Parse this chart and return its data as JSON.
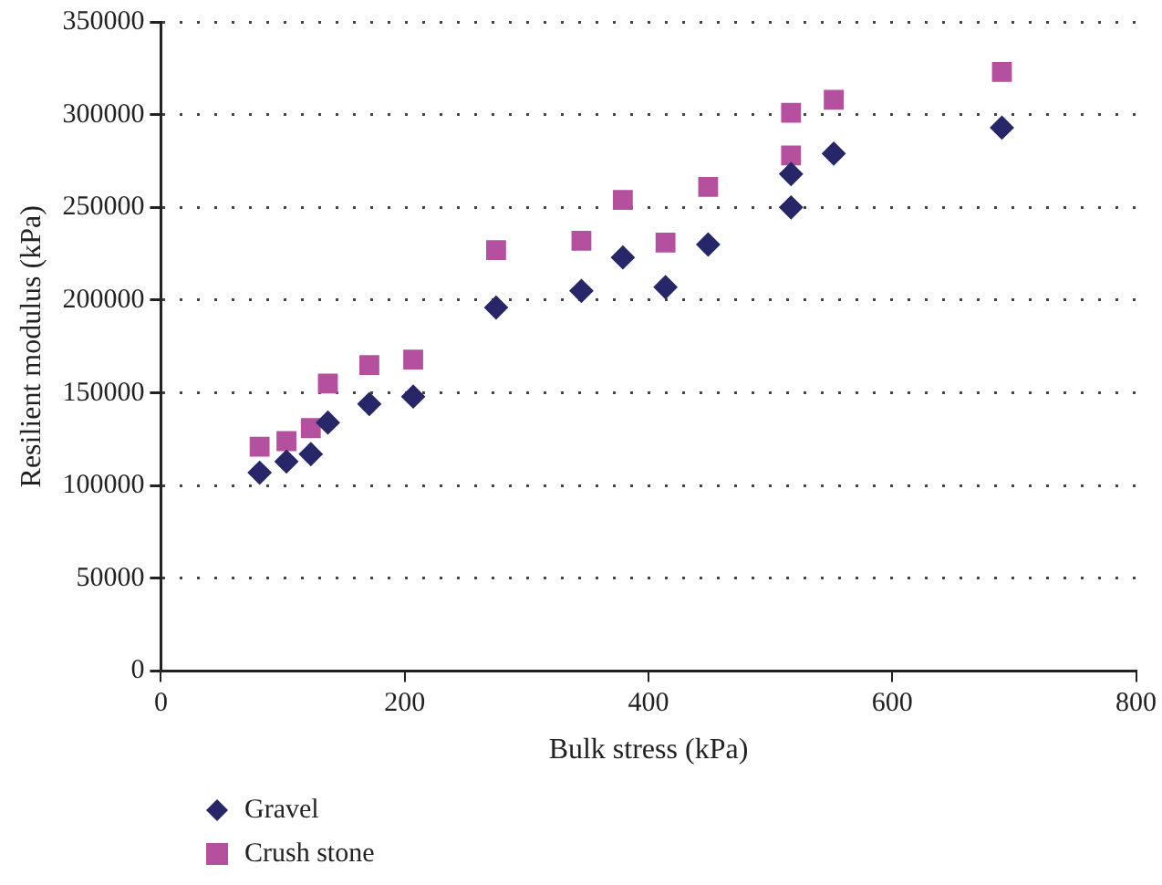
{
  "chart_data": {
    "type": "scatter",
    "xlabel": "Bulk stress (kPa)",
    "ylabel": "Resilient modulus (kPa)",
    "xlim": [
      0,
      800
    ],
    "xticks": [
      0,
      200,
      400,
      600,
      800
    ],
    "ylim": [
      0,
      350000
    ],
    "yticks": [
      0,
      50000,
      100000,
      150000,
      200000,
      250000,
      300000,
      350000
    ],
    "grid": "y",
    "legend": "bottom left",
    "series": [
      {
        "name": "Gravel",
        "color": "#262669",
        "marker": "diamond",
        "x": [
          81,
          103,
          123,
          137,
          171,
          207,
          275,
          345,
          379,
          414,
          449,
          517,
          517,
          552,
          690
        ],
        "values": [
          107000,
          113000,
          117000,
          134000,
          144000,
          148000,
          196000,
          205000,
          223000,
          207000,
          230000,
          250000,
          268000,
          279000,
          293000
        ]
      },
      {
        "name": "Crush stone",
        "color": "#b5509f",
        "marker": "square",
        "x": [
          81,
          103,
          123,
          137,
          171,
          207,
          275,
          345,
          379,
          414,
          449,
          517,
          517,
          552,
          690
        ],
        "values": [
          121000,
          124000,
          131000,
          155000,
          165000,
          168000,
          227000,
          232000,
          254000,
          231000,
          261000,
          278000,
          301000,
          308000,
          323000
        ]
      }
    ]
  }
}
